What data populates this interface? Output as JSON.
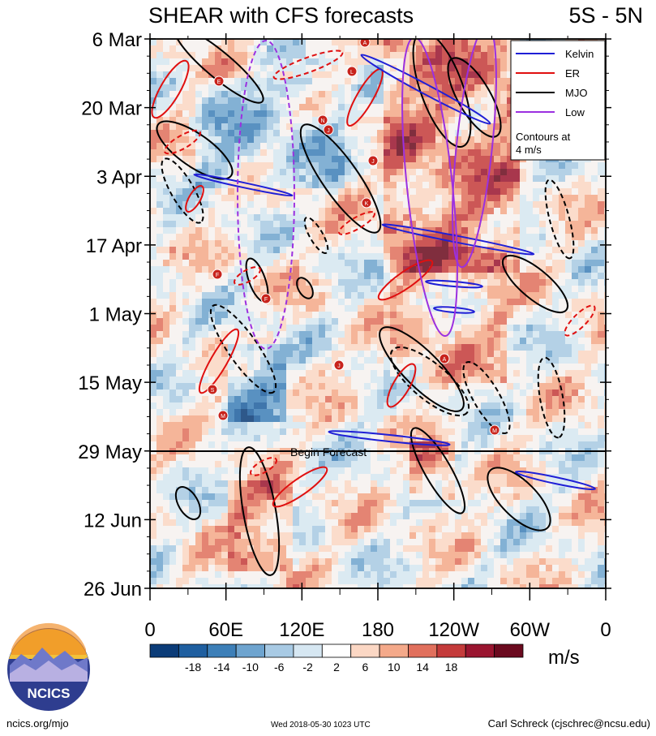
{
  "header": {
    "title": "SHEAR with CFS forecasts",
    "region": "5S - 5N"
  },
  "chart_data": {
    "type": "heatmap",
    "title": "SHEAR with CFS forecasts",
    "xlabel": "",
    "ylabel": "",
    "x_ticks": [
      "0",
      "60E",
      "120E",
      "180",
      "120W",
      "60W",
      "0"
    ],
    "x_tick_values": [
      0,
      60,
      120,
      180,
      240,
      300,
      360
    ],
    "y_ticks": [
      "6 Mar",
      "20 Mar",
      "3 Apr",
      "17 Apr",
      "1 May",
      "15 May",
      "29 May",
      "12 Jun",
      "26 Jun"
    ],
    "forecast_start": "29 May",
    "annotation": "Begin Forecast",
    "colorbar": {
      "unit": "m/s",
      "labels": [
        "-18",
        "-14",
        "-10",
        "-6",
        "-2",
        "2",
        "6",
        "10",
        "14",
        "18"
      ],
      "colors": [
        "#0b3c78",
        "#1f5fa0",
        "#3d7fb8",
        "#6ea4cf",
        "#a8cae4",
        "#d6e7f2",
        "#ffffff",
        "#fbd7c4",
        "#f4a98a",
        "#e1705d",
        "#c43b3b",
        "#9a1530",
        "#6b0a1f"
      ]
    },
    "legend": {
      "placement": "top-right",
      "items": [
        {
          "label": "Kelvin",
          "color": "#1f1fd6"
        },
        {
          "label": "ER",
          "color": "#e01010"
        },
        {
          "label": "MJO",
          "color": "#000000"
        },
        {
          "label": "Low",
          "color": "#9b30e0"
        }
      ],
      "note_line1": "Contours at",
      "note_line2": "4 m/s"
    },
    "storm_markers": [
      "E",
      "M",
      "N",
      "J",
      "L",
      "K",
      "J",
      "F",
      "F",
      "S",
      "M",
      "A",
      "J",
      "A"
    ]
  },
  "footer": {
    "logo_text": "NCICS",
    "url": "ncics.org/mjo",
    "timestamp": "Wed 2018-05-30 1023 UTC",
    "author": "Carl Schreck (cjschrec@ncsu.edu)"
  }
}
